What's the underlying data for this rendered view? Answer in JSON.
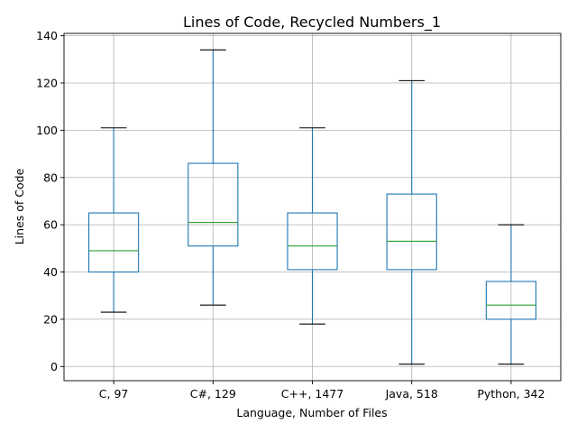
{
  "chart_data": {
    "type": "box",
    "title": "Lines of Code, Recycled Numbers_1",
    "xlabel": "Language, Number of Files",
    "ylabel": "Lines of Code",
    "ylim": [
      -6,
      141
    ],
    "yticks": [
      0,
      20,
      40,
      60,
      80,
      100,
      120,
      140
    ],
    "grid": true,
    "categories": [
      "C, 97",
      "C#, 129",
      "C++, 1477",
      "Java, 518",
      "Python, 342"
    ],
    "boxes": [
      {
        "whisker_low": 23,
        "q1": 40,
        "median": 49,
        "q3": 65,
        "whisker_high": 101
      },
      {
        "whisker_low": 26,
        "q1": 51,
        "median": 61,
        "q3": 86,
        "whisker_high": 134
      },
      {
        "whisker_low": 18,
        "q1": 41,
        "median": 51,
        "q3": 65,
        "whisker_high": 101
      },
      {
        "whisker_low": 1,
        "q1": 41,
        "median": 53,
        "q3": 73,
        "whisker_high": 121
      },
      {
        "whisker_low": 1,
        "q1": 20,
        "median": 26,
        "q3": 36,
        "whisker_high": 60
      }
    ],
    "colors": {
      "box": "#1f77b4",
      "median": "#2ca02c",
      "whisker_cap": "#000000"
    }
  }
}
